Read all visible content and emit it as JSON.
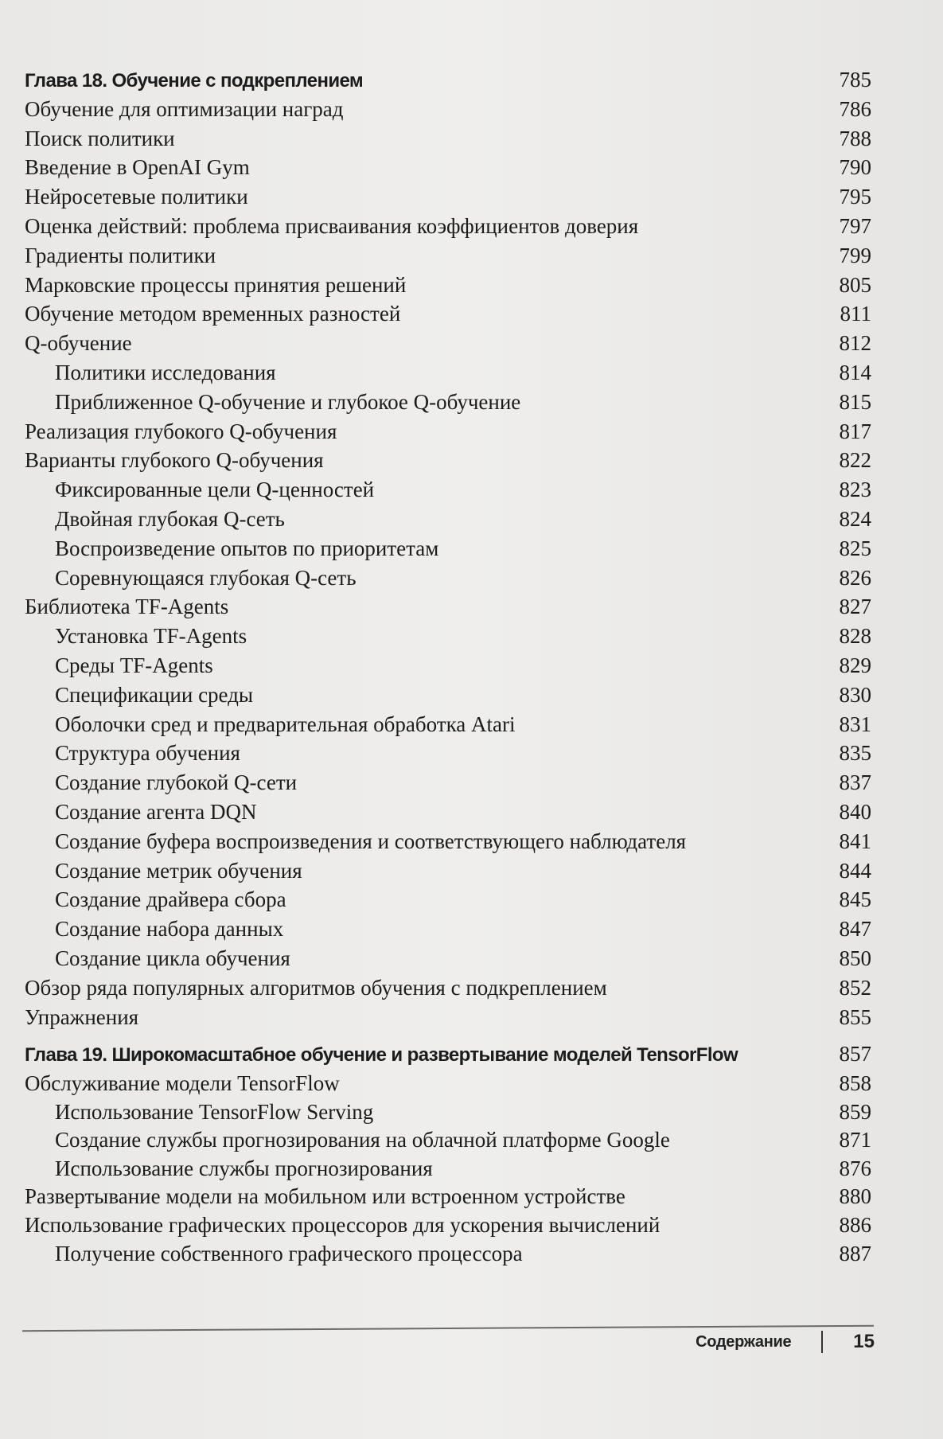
{
  "chapter18": {
    "title": "Глава 18. Обучение с подкреплением",
    "page": "785",
    "entries": [
      {
        "text": "Обучение для оптимизации наград",
        "page": "786",
        "level": 1
      },
      {
        "text": "Поиск политики",
        "page": "788",
        "level": 1
      },
      {
        "text": "Введение в OpenAI Gym",
        "page": "790",
        "level": 1
      },
      {
        "text": "Нейросетевые политики",
        "page": "795",
        "level": 1
      },
      {
        "text": "Оценка действий: проблема присваивания коэффициентов доверия",
        "page": "797",
        "level": 1
      },
      {
        "text": "Градиенты политики",
        "page": "799",
        "level": 1
      },
      {
        "text": "Марковские процессы принятия решений",
        "page": "805",
        "level": 1
      },
      {
        "text": "Обучение методом временных разностей",
        "page": "811",
        "level": 1
      },
      {
        "text": "Q-обучение",
        "page": "812",
        "level": 1
      },
      {
        "text": "Политики исследования",
        "page": "814",
        "level": 2
      },
      {
        "text": "Приближенное Q-обучение и глубокое Q-обучение",
        "page": "815",
        "level": 2
      },
      {
        "text": "Реализация глубокого Q-обучения",
        "page": "817",
        "level": 1
      },
      {
        "text": "Варианты глубокого Q-обучения",
        "page": "822",
        "level": 1
      },
      {
        "text": "Фиксированные цели Q-ценностей",
        "page": "823",
        "level": 2
      },
      {
        "text": "Двойная глубокая Q-сеть",
        "page": "824",
        "level": 2
      },
      {
        "text": "Воспроизведение опытов по приоритетам",
        "page": "825",
        "level": 2
      },
      {
        "text": "Соревнующаяся глубокая Q-сеть",
        "page": "826",
        "level": 2
      },
      {
        "text": "Библиотека TF-Agents",
        "page": "827",
        "level": 1
      },
      {
        "text": "Установка TF-Agents",
        "page": "828",
        "level": 2
      },
      {
        "text": "Среды TF-Agents",
        "page": "829",
        "level": 2
      },
      {
        "text": "Спецификации среды",
        "page": "830",
        "level": 2
      },
      {
        "text": "Оболочки сред и предварительная обработка Atari",
        "page": "831",
        "level": 2
      },
      {
        "text": "Структура обучения",
        "page": "835",
        "level": 2
      },
      {
        "text": "Создание глубокой Q-сети",
        "page": "837",
        "level": 2
      },
      {
        "text": "Создание агента DQN",
        "page": "840",
        "level": 2
      },
      {
        "text": "Создание буфера воспроизведения и соответствующего наблюдателя",
        "page": "841",
        "level": 2
      },
      {
        "text": "Создание метрик обучения",
        "page": "844",
        "level": 2
      },
      {
        "text": "Создание драйвера сбора",
        "page": "845",
        "level": 2
      },
      {
        "text": "Создание набора данных",
        "page": "847",
        "level": 2
      },
      {
        "text": "Создание цикла обучения",
        "page": "850",
        "level": 2
      },
      {
        "text": "Обзор ряда популярных алгоритмов обучения с подкреплением",
        "page": "852",
        "level": 1
      },
      {
        "text": "Упражнения",
        "page": "855",
        "level": 1
      }
    ]
  },
  "chapter19": {
    "title": "Глава 19. Широкомасштабное обучение и развертывание моделей TensorFlow",
    "page": "857",
    "entries": [
      {
        "text": "Обслуживание модели TensorFlow",
        "page": "858",
        "level": 1
      },
      {
        "text": "Использование TensorFlow Serving",
        "page": "859",
        "level": 2
      },
      {
        "text": "Создание службы прогнозирования на облачной платформе Google",
        "page": "871",
        "level": 2
      },
      {
        "text": "Использование службы прогнозирования",
        "page": "876",
        "level": 2
      },
      {
        "text": "Развертывание модели на мобильном или встроенном устройстве",
        "page": "880",
        "level": 1
      },
      {
        "text": "Использование графических процессоров для ускорения вычислений",
        "page": "886",
        "level": 1
      },
      {
        "text": "Получение собственного графического процессора",
        "page": "887",
        "level": 2
      }
    ]
  },
  "footer": {
    "section": "Содержание",
    "page_number": "15"
  }
}
